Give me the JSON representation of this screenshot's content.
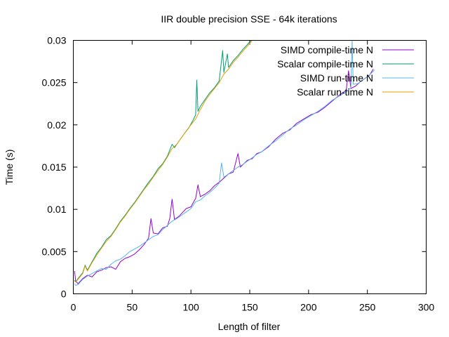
{
  "chart_data": {
    "type": "line",
    "title": "IIR double precision SSE - 64k iterations",
    "xlabel": "Length of filter",
    "ylabel": "Time (s)",
    "xlim": [
      0,
      300
    ],
    "ylim": [
      0,
      0.03
    ],
    "x_ticks": [
      0,
      50,
      100,
      150,
      200,
      250,
      300
    ],
    "x_tick_labels": [
      "0",
      "50",
      "100",
      "150",
      "200",
      "250",
      "300"
    ],
    "y_ticks": [
      0,
      0.005,
      0.01,
      0.015,
      0.02,
      0.025,
      0.03
    ],
    "y_tick_labels": [
      "0",
      "0.005",
      "0.01",
      "0.015",
      "0.02",
      "0.025",
      "0.03"
    ],
    "grid": false,
    "legend_position": "top-right",
    "series": [
      {
        "name": "SIMD compile-time N",
        "color": "#9400d3",
        "points": [
          [
            1,
            0.0027
          ],
          [
            2,
            0.0015
          ],
          [
            4,
            0.0012
          ],
          [
            8,
            0.0018
          ],
          [
            12,
            0.0022
          ],
          [
            16,
            0.002
          ],
          [
            20,
            0.0026
          ],
          [
            24,
            0.0028
          ],
          [
            28,
            0.0031
          ],
          [
            32,
            0.0032
          ],
          [
            36,
            0.0029
          ],
          [
            40,
            0.0038
          ],
          [
            44,
            0.0042
          ],
          [
            48,
            0.0044
          ],
          [
            52,
            0.0047
          ],
          [
            56,
            0.0052
          ],
          [
            60,
            0.0058
          ],
          [
            64,
            0.0066
          ],
          [
            66,
            0.0089
          ],
          [
            68,
            0.0072
          ],
          [
            72,
            0.0071
          ],
          [
            76,
            0.0078
          ],
          [
            80,
            0.008
          ],
          [
            82,
            0.0089
          ],
          [
            84,
            0.0112
          ],
          [
            86,
            0.0088
          ],
          [
            90,
            0.0092
          ],
          [
            96,
            0.0101
          ],
          [
            100,
            0.0103
          ],
          [
            104,
            0.0113
          ],
          [
            106,
            0.0129
          ],
          [
            108,
            0.0115
          ],
          [
            112,
            0.0118
          ],
          [
            116,
            0.0122
          ],
          [
            120,
            0.0128
          ],
          [
            124,
            0.0132
          ],
          [
            128,
            0.0137
          ],
          [
            132,
            0.0142
          ],
          [
            136,
            0.0144
          ],
          [
            140,
            0.0166
          ],
          [
            142,
            0.015
          ],
          [
            148,
            0.0158
          ],
          [
            152,
            0.016
          ],
          [
            156,
            0.0166
          ],
          [
            160,
            0.0168
          ],
          [
            166,
            0.0174
          ],
          [
            172,
            0.0183
          ],
          [
            178,
            0.019
          ],
          [
            184,
            0.0194
          ],
          [
            190,
            0.0202
          ],
          [
            196,
            0.0207
          ],
          [
            202,
            0.0212
          ],
          [
            208,
            0.0215
          ],
          [
            214,
            0.0221
          ],
          [
            220,
            0.0228
          ],
          [
            226,
            0.0235
          ],
          [
            232,
            0.0241
          ],
          [
            234,
            0.0264
          ],
          [
            236,
            0.0243
          ],
          [
            240,
            0.0246
          ],
          [
            244,
            0.0251
          ],
          [
            248,
            0.0255
          ],
          [
            252,
            0.0259
          ],
          [
            255,
            0.0266
          ]
        ]
      },
      {
        "name": "Scalar compile-time N",
        "color": "#009e73",
        "points": [
          [
            1,
            0.0016
          ],
          [
            2,
            0.0014
          ],
          [
            4,
            0.0018
          ],
          [
            8,
            0.0025
          ],
          [
            10,
            0.0034
          ],
          [
            12,
            0.0028
          ],
          [
            16,
            0.0038
          ],
          [
            20,
            0.0048
          ],
          [
            24,
            0.0055
          ],
          [
            28,
            0.0064
          ],
          [
            32,
            0.0069
          ],
          [
            36,
            0.0077
          ],
          [
            40,
            0.0086
          ],
          [
            44,
            0.0093
          ],
          [
            48,
            0.0101
          ],
          [
            52,
            0.0108
          ],
          [
            56,
            0.0116
          ],
          [
            60,
            0.0124
          ],
          [
            64,
            0.0132
          ],
          [
            68,
            0.0139
          ],
          [
            72,
            0.0148
          ],
          [
            76,
            0.0154
          ],
          [
            80,
            0.0163
          ],
          [
            84,
            0.0177
          ],
          [
            86,
            0.0173
          ],
          [
            90,
            0.0181
          ],
          [
            94,
            0.0189
          ],
          [
            98,
            0.0196
          ],
          [
            102,
            0.0206
          ],
          [
            104,
            0.0212
          ],
          [
            105,
            0.0253
          ],
          [
            106,
            0.0216
          ],
          [
            108,
            0.0222
          ],
          [
            112,
            0.023
          ],
          [
            116,
            0.0238
          ],
          [
            120,
            0.0244
          ],
          [
            124,
            0.0252
          ],
          [
            127,
            0.0288
          ],
          [
            128,
            0.0262
          ],
          [
            131,
            0.0284
          ],
          [
            132,
            0.0268
          ],
          [
            136,
            0.0276
          ],
          [
            140,
            0.0282
          ],
          [
            144,
            0.0289
          ],
          [
            148,
            0.0295
          ],
          [
            151,
            0.03
          ]
        ]
      },
      {
        "name": "SIMD run-time N",
        "color": "#56b4e9",
        "points": [
          [
            1,
            0.0012
          ],
          [
            2,
            0.001
          ],
          [
            4,
            0.0011
          ],
          [
            8,
            0.0017
          ],
          [
            12,
            0.0021
          ],
          [
            16,
            0.0024
          ],
          [
            20,
            0.0027
          ],
          [
            24,
            0.003
          ],
          [
            28,
            0.0029
          ],
          [
            32,
            0.0035
          ],
          [
            36,
            0.0039
          ],
          [
            40,
            0.0041
          ],
          [
            44,
            0.0045
          ],
          [
            48,
            0.005
          ],
          [
            52,
            0.0053
          ],
          [
            56,
            0.0056
          ],
          [
            60,
            0.006
          ],
          [
            64,
            0.0064
          ],
          [
            68,
            0.0068
          ],
          [
            72,
            0.007
          ],
          [
            76,
            0.0076
          ],
          [
            80,
            0.0081
          ],
          [
            84,
            0.0086
          ],
          [
            88,
            0.0089
          ],
          [
            92,
            0.0093
          ],
          [
            96,
            0.0097
          ],
          [
            100,
            0.0101
          ],
          [
            104,
            0.0109
          ],
          [
            108,
            0.0111
          ],
          [
            112,
            0.0116
          ],
          [
            116,
            0.012
          ],
          [
            120,
            0.0125
          ],
          [
            124,
            0.0131
          ],
          [
            126,
            0.0155
          ],
          [
            128,
            0.0138
          ],
          [
            132,
            0.0142
          ],
          [
            136,
            0.0146
          ],
          [
            140,
            0.015
          ],
          [
            144,
            0.0153
          ],
          [
            148,
            0.0157
          ],
          [
            152,
            0.0161
          ],
          [
            156,
            0.0165
          ],
          [
            160,
            0.0168
          ],
          [
            166,
            0.0175
          ],
          [
            172,
            0.0181
          ],
          [
            178,
            0.0188
          ],
          [
            184,
            0.0195
          ],
          [
            190,
            0.02
          ],
          [
            196,
            0.0206
          ],
          [
            202,
            0.0211
          ],
          [
            208,
            0.0216
          ],
          [
            214,
            0.0222
          ],
          [
            220,
            0.0229
          ],
          [
            226,
            0.0234
          ],
          [
            232,
            0.0239
          ],
          [
            236,
            0.0244
          ],
          [
            237,
            0.03
          ],
          [
            238,
            0.0248
          ],
          [
            242,
            0.0249
          ],
          [
            246,
            0.0253
          ],
          [
            250,
            0.0257
          ],
          [
            254,
            0.0262
          ],
          [
            256,
            0.0265
          ]
        ]
      },
      {
        "name": "Scalar run-time N",
        "color": "#e69f00",
        "points": [
          [
            1,
            0.0015
          ],
          [
            2,
            0.0014
          ],
          [
            4,
            0.0017
          ],
          [
            8,
            0.0024
          ],
          [
            10,
            0.0033
          ],
          [
            12,
            0.0027
          ],
          [
            16,
            0.0037
          ],
          [
            20,
            0.0046
          ],
          [
            24,
            0.0054
          ],
          [
            28,
            0.0062
          ],
          [
            32,
            0.0068
          ],
          [
            36,
            0.0076
          ],
          [
            40,
            0.0085
          ],
          [
            44,
            0.0092
          ],
          [
            48,
            0.01
          ],
          [
            52,
            0.0107
          ],
          [
            56,
            0.0115
          ],
          [
            60,
            0.0123
          ],
          [
            64,
            0.013
          ],
          [
            68,
            0.0138
          ],
          [
            72,
            0.0146
          ],
          [
            76,
            0.0153
          ],
          [
            80,
            0.0162
          ],
          [
            84,
            0.0172
          ],
          [
            88,
            0.0177
          ],
          [
            92,
            0.0185
          ],
          [
            96,
            0.0193
          ],
          [
            100,
            0.02
          ],
          [
            104,
            0.0207
          ],
          [
            108,
            0.0218
          ],
          [
            112,
            0.0228
          ],
          [
            116,
            0.0236
          ],
          [
            120,
            0.0243
          ],
          [
            124,
            0.025
          ],
          [
            128,
            0.026
          ],
          [
            132,
            0.0266
          ],
          [
            136,
            0.0274
          ],
          [
            140,
            0.028
          ],
          [
            144,
            0.0287
          ],
          [
            148,
            0.0293
          ],
          [
            152,
            0.03
          ]
        ]
      }
    ]
  }
}
